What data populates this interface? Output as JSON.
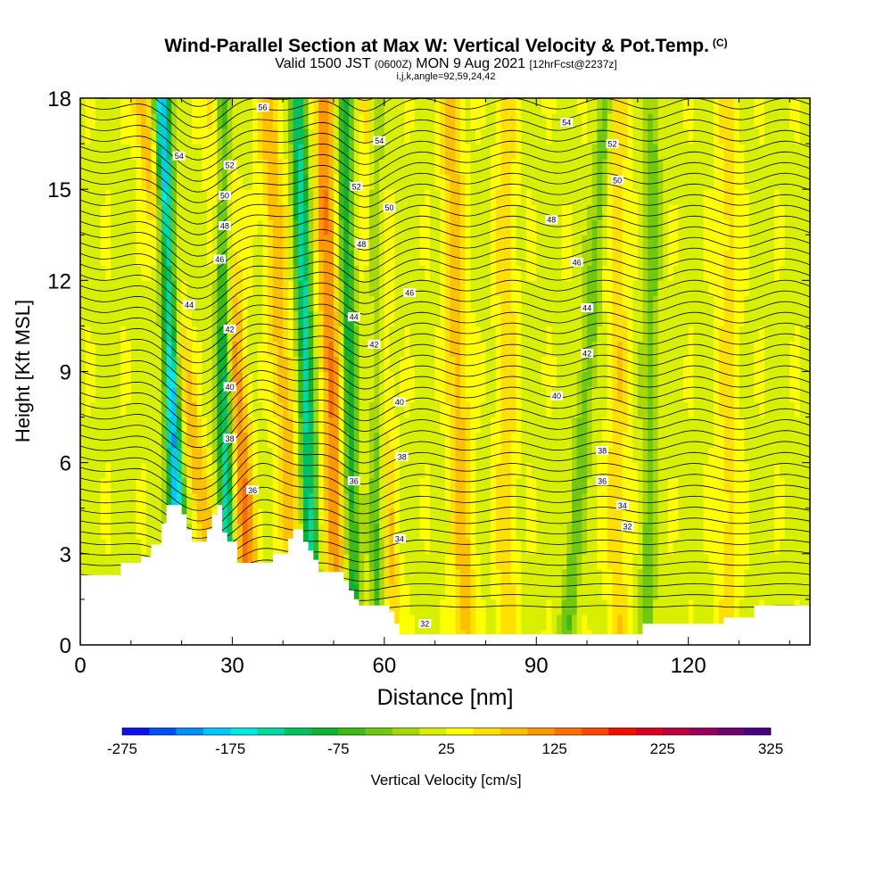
{
  "titles": {
    "main": "Wind-Parallel Section at Max W: Vertical Velocity & Pot.Temp.",
    "main_suffix": "(C)",
    "valid_prefix": "Valid 1500 JST",
    "valid_utc": "(0600Z)",
    "valid_date": "MON 9 Aug 2021",
    "valid_fcst": "[12hrFcst@2237z]",
    "indices": "i,j,k,angle=92,59,24,42"
  },
  "chart_data": {
    "type": "heatmap",
    "xlabel": "Distance [nm]",
    "ylabel": "Height [Kft MSL]",
    "xlim": [
      0,
      144
    ],
    "ylim": [
      0,
      18
    ],
    "x_ticks": [
      0,
      30,
      60,
      90,
      120
    ],
    "y_ticks": [
      0,
      3,
      6,
      9,
      12,
      15,
      18
    ],
    "colorbar": {
      "label": "Vertical Velocity [cm/s]",
      "tick_labels": [
        -275,
        -175,
        -75,
        25,
        125,
        225,
        325
      ],
      "range": [
        -275,
        325
      ],
      "colors": [
        "#1010ee",
        "#0050f5",
        "#0090ff",
        "#00c8ff",
        "#00e8e0",
        "#00d8a0",
        "#00c060",
        "#10b030",
        "#40b818",
        "#70c810",
        "#a8d808",
        "#d8f000",
        "#ffff00",
        "#ffe000",
        "#ffc000",
        "#ff9800",
        "#ff7000",
        "#ff4800",
        "#f01000",
        "#d80020",
        "#b80040",
        "#980058",
        "#700070",
        "#480080"
      ]
    },
    "updraft_bands": [
      {
        "x_base": 28,
        "x_top": 12,
        "w_peak": 80
      },
      {
        "x_base": 34,
        "x_top": 27,
        "w_peak": 110
      },
      {
        "x_base": 43,
        "x_top": 37,
        "w_peak": 75
      },
      {
        "x_base": 51,
        "x_top": 48,
        "w_peak": 105
      },
      {
        "x_base": 61,
        "x_top": 57,
        "w_peak": 80
      },
      {
        "x_base": 76,
        "x_top": 73,
        "w_peak": 70
      },
      {
        "x_base": 84,
        "x_top": 84,
        "w_peak": 45
      },
      {
        "x_base": 106,
        "x_top": 106,
        "w_peak": 50
      },
      {
        "x_base": 128,
        "x_top": 128,
        "w_peak": 45
      }
    ],
    "downdraft_bands": [
      {
        "x_base": 20,
        "x_top": 16,
        "w_peak": -225
      },
      {
        "x_base": 29,
        "x_top": 28,
        "w_peak": -170
      },
      {
        "x_base": 46,
        "x_top": 43,
        "w_peak": -155
      },
      {
        "x_base": 54,
        "x_top": 52,
        "w_peak": -115
      },
      {
        "x_base": 59,
        "x_top": 58,
        "w_peak": -110
      },
      {
        "x_base": 96,
        "x_top": 104,
        "w_peak": -60
      },
      {
        "x_base": 112,
        "x_top": 113,
        "w_peak": -55
      }
    ],
    "terrain": [
      [
        0,
        2.3
      ],
      [
        8,
        2.3
      ],
      [
        8,
        2.7
      ],
      [
        12,
        2.7
      ],
      [
        12,
        2.9
      ],
      [
        14,
        2.9
      ],
      [
        14,
        3.3
      ],
      [
        16,
        3.3
      ],
      [
        16,
        4.0
      ],
      [
        17,
        4.0
      ],
      [
        17,
        4.6
      ],
      [
        20,
        4.6
      ],
      [
        20,
        4.3
      ],
      [
        21,
        4.3
      ],
      [
        21,
        3.8
      ],
      [
        22,
        3.8
      ],
      [
        22,
        3.4
      ],
      [
        25,
        3.4
      ],
      [
        25,
        3.8
      ],
      [
        26,
        3.8
      ],
      [
        26,
        4.3
      ],
      [
        27,
        4.3
      ],
      [
        27,
        4.6
      ],
      [
        28,
        4.6
      ],
      [
        28,
        3.7
      ],
      [
        29,
        3.7
      ],
      [
        29,
        3.4
      ],
      [
        31,
        3.4
      ],
      [
        31,
        2.7
      ],
      [
        38,
        2.7
      ],
      [
        38,
        3.0
      ],
      [
        41,
        3.0
      ],
      [
        41,
        3.5
      ],
      [
        42,
        3.5
      ],
      [
        42,
        3.8
      ],
      [
        44,
        3.8
      ],
      [
        44,
        3.4
      ],
      [
        45,
        3.4
      ],
      [
        45,
        3.1
      ],
      [
        46,
        3.1
      ],
      [
        46,
        2.8
      ],
      [
        47,
        2.8
      ],
      [
        47,
        2.4
      ],
      [
        52,
        2.4
      ],
      [
        52,
        2.1
      ],
      [
        53,
        2.1
      ],
      [
        53,
        1.8
      ],
      [
        54,
        1.8
      ],
      [
        54,
        1.5
      ],
      [
        55,
        1.5
      ],
      [
        55,
        1.3
      ],
      [
        61,
        1.3
      ],
      [
        61,
        1.1
      ],
      [
        62,
        1.1
      ],
      [
        62,
        0.7
      ],
      [
        63,
        0.7
      ],
      [
        63,
        0.35
      ],
      [
        111,
        0.35
      ],
      [
        111,
        0.7
      ],
      [
        127,
        0.7
      ],
      [
        127,
        0.9
      ],
      [
        133,
        0.9
      ],
      [
        133,
        1.3
      ],
      [
        144,
        1.3
      ],
      [
        144,
        0
      ],
      [
        0,
        0
      ]
    ],
    "contour_labels": [
      {
        "text": "56",
        "x": 36,
        "y": 17.7
      },
      {
        "text": "54",
        "x": 19.5,
        "y": 16.1
      },
      {
        "text": "52",
        "x": 29.5,
        "y": 15.8
      },
      {
        "text": "50",
        "x": 28.5,
        "y": 14.8
      },
      {
        "text": "48",
        "x": 28.5,
        "y": 13.8
      },
      {
        "text": "46",
        "x": 27.5,
        "y": 12.7
      },
      {
        "text": "44",
        "x": 21.5,
        "y": 11.2
      },
      {
        "text": "42",
        "x": 29.5,
        "y": 10.4
      },
      {
        "text": "40",
        "x": 29.5,
        "y": 8.5
      },
      {
        "text": "38",
        "x": 29.5,
        "y": 6.8
      },
      {
        "text": "36",
        "x": 34,
        "y": 5.1
      },
      {
        "text": "54",
        "x": 59,
        "y": 16.6
      },
      {
        "text": "52",
        "x": 54.5,
        "y": 15.1
      },
      {
        "text": "50",
        "x": 61,
        "y": 14.4
      },
      {
        "text": "48",
        "x": 55.5,
        "y": 13.2
      },
      {
        "text": "46",
        "x": 65,
        "y": 11.6
      },
      {
        "text": "44",
        "x": 54,
        "y": 10.8
      },
      {
        "text": "42",
        "x": 58,
        "y": 9.9
      },
      {
        "text": "40",
        "x": 63,
        "y": 8.0
      },
      {
        "text": "38",
        "x": 63.5,
        "y": 6.2
      },
      {
        "text": "36",
        "x": 54,
        "y": 5.4
      },
      {
        "text": "34",
        "x": 63,
        "y": 3.5
      },
      {
        "text": "32",
        "x": 68,
        "y": 0.7
      },
      {
        "text": "54",
        "x": 96,
        "y": 17.2
      },
      {
        "text": "52",
        "x": 105,
        "y": 16.5
      },
      {
        "text": "50",
        "x": 106,
        "y": 15.3
      },
      {
        "text": "48",
        "x": 93,
        "y": 14.0
      },
      {
        "text": "46",
        "x": 98,
        "y": 12.6
      },
      {
        "text": "44",
        "x": 100,
        "y": 11.1
      },
      {
        "text": "42",
        "x": 100,
        "y": 9.6
      },
      {
        "text": "40",
        "x": 94,
        "y": 8.2
      },
      {
        "text": "38",
        "x": 103,
        "y": 6.4
      },
      {
        "text": "36",
        "x": 103,
        "y": 5.4
      },
      {
        "text": "34",
        "x": 107,
        "y": 4.6
      },
      {
        "text": "32",
        "x": 108,
        "y": 3.9
      }
    ]
  }
}
